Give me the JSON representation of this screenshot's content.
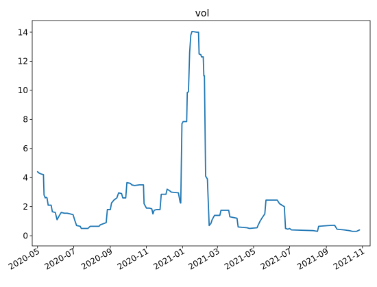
{
  "chart_data": {
    "type": "line",
    "title": "vol",
    "xlabel": "",
    "ylabel": "",
    "x_type": "date",
    "xlim": [
      "2020-04-22",
      "2021-11-14"
    ],
    "ylim": [
      -0.7,
      14.8
    ],
    "grid": false,
    "legend": "none",
    "x_ticks": [
      {
        "date": "2020-05-01",
        "label": "2020-05"
      },
      {
        "date": "2020-07-01",
        "label": "2020-07"
      },
      {
        "date": "2020-09-01",
        "label": "2020-09"
      },
      {
        "date": "2020-11-01",
        "label": "2020-11"
      },
      {
        "date": "2021-01-01",
        "label": "2021-01"
      },
      {
        "date": "2021-03-01",
        "label": "2021-03"
      },
      {
        "date": "2021-05-01",
        "label": "2021-05"
      },
      {
        "date": "2021-07-01",
        "label": "2021-07"
      },
      {
        "date": "2021-09-01",
        "label": "2021-09"
      },
      {
        "date": "2021-11-01",
        "label": "2021-11"
      }
    ],
    "y_ticks": [
      0,
      2,
      4,
      6,
      8,
      10,
      12,
      14
    ],
    "series": [
      {
        "color": "#1f77b4",
        "points": [
          [
            "2020-05-01",
            4.4
          ],
          [
            "2020-05-04",
            4.3
          ],
          [
            "2020-05-07",
            4.25
          ],
          [
            "2020-05-11",
            4.2
          ],
          [
            "2020-05-12",
            2.8
          ],
          [
            "2020-05-14",
            2.6
          ],
          [
            "2020-05-15",
            2.65
          ],
          [
            "2020-05-17",
            2.6
          ],
          [
            "2020-05-19",
            2.1
          ],
          [
            "2020-05-24",
            2.1
          ],
          [
            "2020-05-26",
            1.65
          ],
          [
            "2020-05-31",
            1.6
          ],
          [
            "2020-06-03",
            1.1
          ],
          [
            "2020-06-05",
            1.25
          ],
          [
            "2020-06-07",
            1.4
          ],
          [
            "2020-06-10",
            1.6
          ],
          [
            "2020-06-15",
            1.55
          ],
          [
            "2020-06-20",
            1.55
          ],
          [
            "2020-06-25",
            1.5
          ],
          [
            "2020-06-30",
            1.45
          ],
          [
            "2020-07-03",
            1.05
          ],
          [
            "2020-07-06",
            0.7
          ],
          [
            "2020-07-12",
            0.65
          ],
          [
            "2020-07-14",
            0.5
          ],
          [
            "2020-07-25",
            0.5
          ],
          [
            "2020-07-29",
            0.65
          ],
          [
            "2020-08-13",
            0.65
          ],
          [
            "2020-08-15",
            0.75
          ],
          [
            "2020-08-25",
            0.9
          ],
          [
            "2020-08-27",
            1.8
          ],
          [
            "2020-09-01",
            1.8
          ],
          [
            "2020-09-03",
            2.25
          ],
          [
            "2020-09-07",
            2.45
          ],
          [
            "2020-09-12",
            2.6
          ],
          [
            "2020-09-15",
            2.95
          ],
          [
            "2020-09-20",
            2.9
          ],
          [
            "2020-09-22",
            2.6
          ],
          [
            "2020-09-27",
            2.6
          ],
          [
            "2020-09-29",
            3.65
          ],
          [
            "2020-10-05",
            3.6
          ],
          [
            "2020-10-07",
            3.5
          ],
          [
            "2020-10-12",
            3.45
          ],
          [
            "2020-10-20",
            3.5
          ],
          [
            "2020-10-27",
            3.5
          ],
          [
            "2020-10-28",
            2.2
          ],
          [
            "2020-11-01",
            1.9
          ],
          [
            "2020-11-06",
            1.9
          ],
          [
            "2020-11-10",
            1.85
          ],
          [
            "2020-11-12",
            1.5
          ],
          [
            "2020-11-14",
            1.75
          ],
          [
            "2020-11-18",
            1.8
          ],
          [
            "2020-11-24",
            1.8
          ],
          [
            "2020-11-26",
            2.85
          ],
          [
            "2020-12-04",
            2.85
          ],
          [
            "2020-12-06",
            3.2
          ],
          [
            "2020-12-10",
            3.1
          ],
          [
            "2020-12-13",
            3.0
          ],
          [
            "2020-12-25",
            2.95
          ],
          [
            "2020-12-28",
            2.3
          ],
          [
            "2020-12-29",
            2.25
          ],
          [
            "2020-12-31",
            7.7
          ],
          [
            "2021-01-02",
            7.85
          ],
          [
            "2021-01-08",
            7.85
          ],
          [
            "2021-01-09",
            9.85
          ],
          [
            "2021-01-11",
            9.9
          ],
          [
            "2021-01-13",
            12.6
          ],
          [
            "2021-01-14",
            13.2
          ],
          [
            "2021-01-15",
            13.8
          ],
          [
            "2021-01-17",
            14.05
          ],
          [
            "2021-01-25",
            14.0
          ],
          [
            "2021-01-28",
            14.0
          ],
          [
            "2021-01-29",
            12.5
          ],
          [
            "2021-02-01",
            12.45
          ],
          [
            "2021-02-02",
            12.3
          ],
          [
            "2021-02-05",
            12.3
          ],
          [
            "2021-02-06",
            11.0
          ],
          [
            "2021-02-07",
            11.0
          ],
          [
            "2021-02-09",
            4.1
          ],
          [
            "2021-02-12",
            3.9
          ],
          [
            "2021-02-15",
            0.7
          ],
          [
            "2021-02-18",
            0.85
          ],
          [
            "2021-02-20",
            1.1
          ],
          [
            "2021-02-24",
            1.4
          ],
          [
            "2021-03-05",
            1.4
          ],
          [
            "2021-03-07",
            1.75
          ],
          [
            "2021-03-20",
            1.75
          ],
          [
            "2021-03-22",
            1.3
          ],
          [
            "2021-04-03",
            1.2
          ],
          [
            "2021-04-05",
            0.6
          ],
          [
            "2021-04-20",
            0.55
          ],
          [
            "2021-04-24",
            0.5
          ],
          [
            "2021-05-07",
            0.55
          ],
          [
            "2021-05-09",
            0.75
          ],
          [
            "2021-05-12",
            1.0
          ],
          [
            "2021-05-15",
            1.2
          ],
          [
            "2021-05-20",
            1.5
          ],
          [
            "2021-05-22",
            2.45
          ],
          [
            "2021-06-10",
            2.45
          ],
          [
            "2021-06-14",
            2.2
          ],
          [
            "2021-06-22",
            2.0
          ],
          [
            "2021-06-24",
            0.5
          ],
          [
            "2021-06-28",
            0.45
          ],
          [
            "2021-07-01",
            0.5
          ],
          [
            "2021-07-04",
            0.4
          ],
          [
            "2021-08-10",
            0.35
          ],
          [
            "2021-08-17",
            0.3
          ],
          [
            "2021-08-19",
            0.65
          ],
          [
            "2021-09-05",
            0.7
          ],
          [
            "2021-09-15",
            0.72
          ],
          [
            "2021-09-19",
            0.45
          ],
          [
            "2021-10-01",
            0.4
          ],
          [
            "2021-10-10",
            0.35
          ],
          [
            "2021-10-15",
            0.3
          ],
          [
            "2021-10-22",
            0.3
          ],
          [
            "2021-10-27",
            0.4
          ]
        ]
      }
    ]
  }
}
